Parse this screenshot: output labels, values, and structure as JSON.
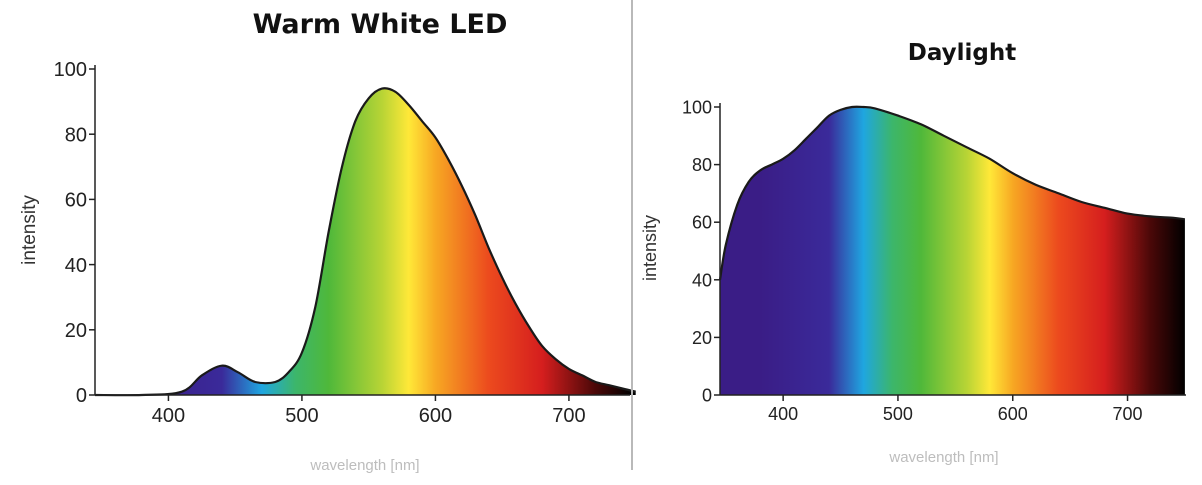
{
  "colors": {
    "spectrum": [
      "#3a1d86",
      "#3a2a9a",
      "#1fa6e0",
      "#3cb66b",
      "#4fb83a",
      "#b8d435",
      "#ffe838",
      "#f7a823",
      "#ec4a1e",
      "#d51e1e",
      "#4a0808",
      "#000000"
    ],
    "outline": "#1a1a1a",
    "divider": "#b9b9b9",
    "xlabel": "#bdbdbd"
  },
  "chart_data": [
    {
      "type": "area",
      "title": "Warm White LED",
      "xlabel": "wavelength [nm]",
      "ylabel": "intensity",
      "xlim": [
        345,
        750
      ],
      "ylim": [
        0,
        100
      ],
      "xticks": [
        400,
        500,
        600,
        700
      ],
      "yticks": [
        0,
        20,
        40,
        60,
        80,
        100
      ],
      "grid": false,
      "x": [
        345,
        380,
        410,
        425,
        440,
        452,
        465,
        480,
        490,
        500,
        510,
        520,
        530,
        540,
        550,
        560,
        570,
        580,
        590,
        600,
        610,
        620,
        630,
        640,
        650,
        660,
        670,
        680,
        690,
        700,
        710,
        720,
        730,
        740,
        750
      ],
      "y": [
        0,
        0,
        1,
        6,
        9,
        7,
        4,
        4,
        7,
        13,
        27,
        50,
        70,
        84,
        91,
        94,
        93,
        89,
        84,
        79,
        72,
        64,
        55,
        45,
        36,
        28,
        21,
        15,
        11,
        8,
        6,
        4,
        3,
        2,
        1
      ]
    },
    {
      "type": "area",
      "title": "Daylight",
      "xlabel": "wavelength [nm]",
      "ylabel": "intensity",
      "xlim": [
        345,
        750
      ],
      "ylim": [
        0,
        100
      ],
      "xticks": [
        400,
        500,
        600,
        700
      ],
      "yticks": [
        0,
        20,
        40,
        60,
        80,
        100
      ],
      "grid": false,
      "x": [
        345,
        350,
        360,
        370,
        380,
        390,
        400,
        410,
        420,
        430,
        440,
        450,
        460,
        470,
        480,
        500,
        520,
        540,
        560,
        580,
        600,
        620,
        640,
        660,
        680,
        700,
        720,
        740,
        750
      ],
      "y": [
        40,
        52,
        66,
        74,
        78,
        80,
        82,
        85,
        89,
        93,
        97,
        99,
        100,
        100,
        99.5,
        97,
        94,
        90,
        86,
        82,
        77,
        73,
        70,
        67,
        65,
        63,
        62,
        61.5,
        61
      ]
    }
  ]
}
